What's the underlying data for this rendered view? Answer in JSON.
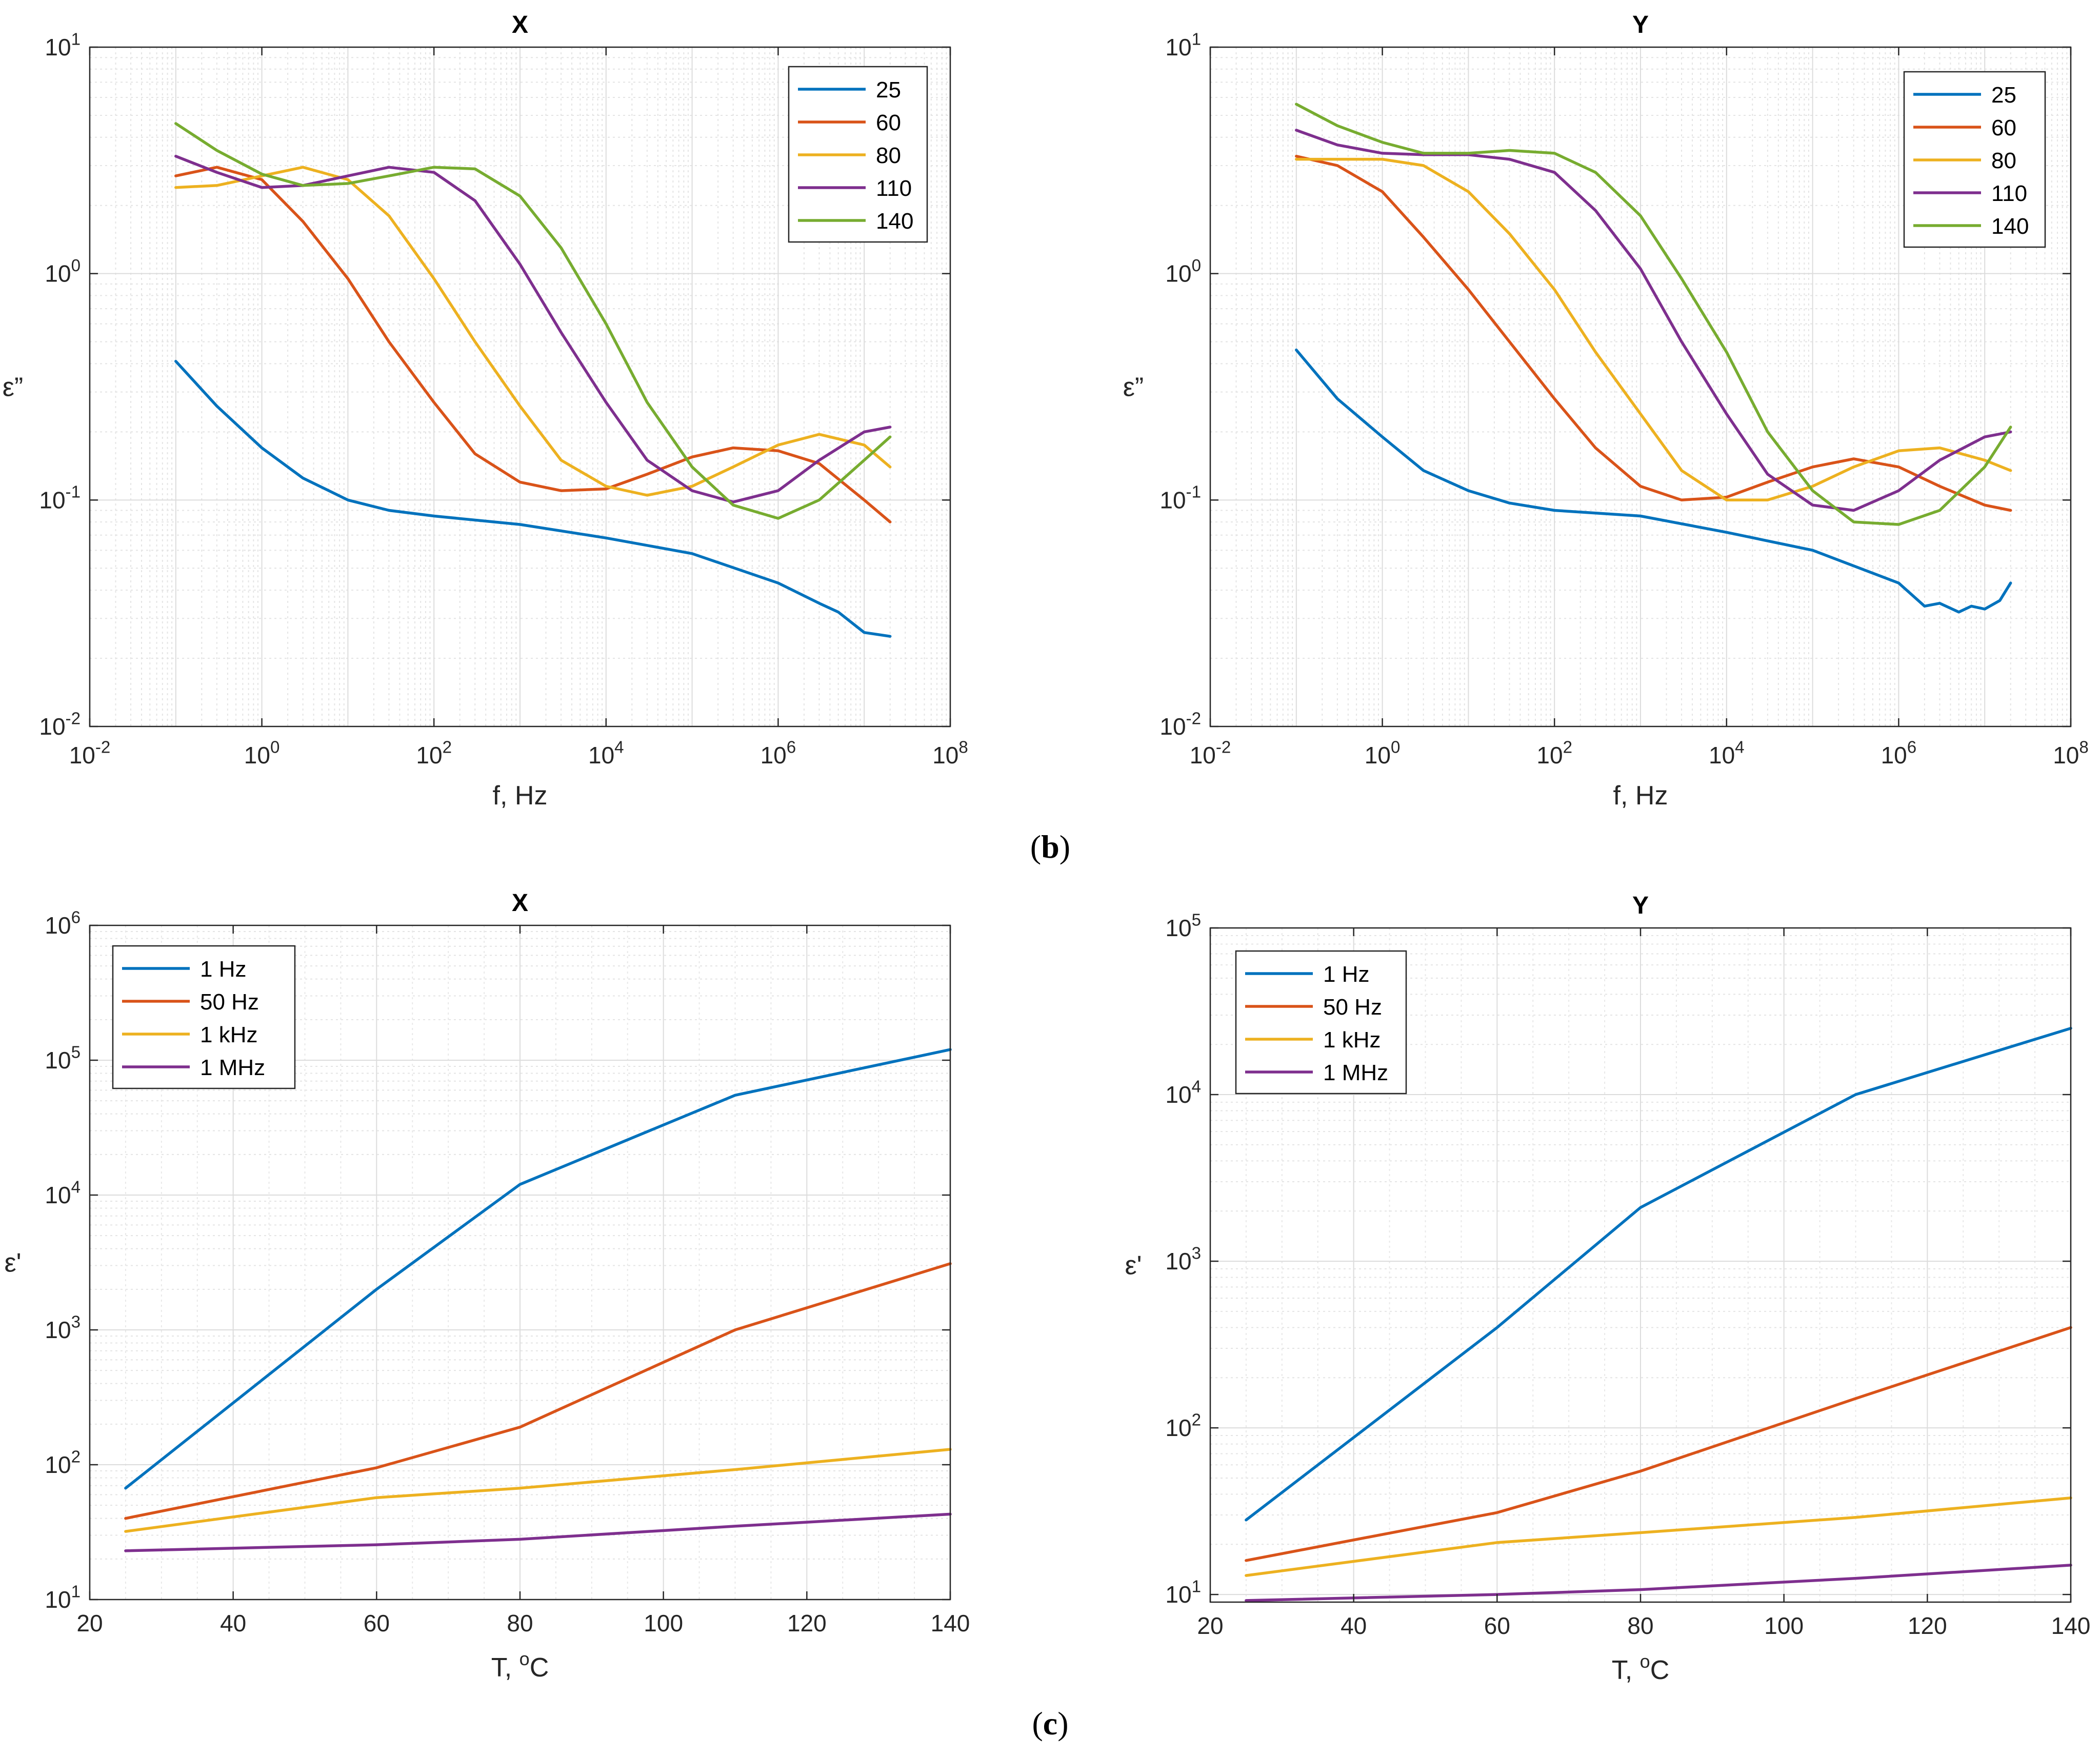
{
  "panel_labels": {
    "b": "b",
    "c": "c"
  },
  "chart_data": [
    {
      "id": "b-x",
      "type": "line",
      "title": "X",
      "xlabel": "f, Hz",
      "ylabel": "ε”",
      "xscale": "log",
      "yscale": "log",
      "xlim": [
        0.01,
        100000000
      ],
      "ylim": [
        0.01,
        10
      ],
      "xticks": [
        0.01,
        1,
        100,
        10000,
        1000000,
        100000000
      ],
      "xtick_labels": [
        {
          "base": "10",
          "exp": "-2"
        },
        {
          "base": "10",
          "exp": "0"
        },
        {
          "base": "10",
          "exp": "2"
        },
        {
          "base": "10",
          "exp": "4"
        },
        {
          "base": "10",
          "exp": "6"
        },
        {
          "base": "10",
          "exp": "8"
        }
      ],
      "yticks": [
        0.01,
        0.1,
        1,
        10
      ],
      "ytick_labels": [
        {
          "base": "10",
          "exp": "-2"
        },
        {
          "base": "10",
          "exp": "-1"
        },
        {
          "base": "10",
          "exp": "0"
        },
        {
          "base": "10",
          "exp": "1"
        }
      ],
      "grid": true,
      "legend_position": "top-right",
      "series": [
        {
          "name": "25",
          "color": "#0072BD",
          "x": [
            0.1,
            0.3,
            1,
            3,
            10,
            30,
            100,
            1000,
            10000,
            100000,
            1000000,
            3000000,
            5000000,
            10000000,
            20000000
          ],
          "y": [
            0.41,
            0.26,
            0.17,
            0.125,
            0.1,
            0.09,
            0.085,
            0.078,
            0.068,
            0.058,
            0.043,
            0.035,
            0.032,
            0.026,
            0.025
          ]
        },
        {
          "name": "60",
          "color": "#D95319",
          "x": [
            0.1,
            0.3,
            1,
            3,
            10,
            30,
            100,
            300,
            1000,
            3000,
            10000,
            30000,
            100000,
            300000,
            1000000,
            3000000,
            10000000,
            20000000
          ],
          "y": [
            2.7,
            2.95,
            2.6,
            1.7,
            0.95,
            0.5,
            0.27,
            0.16,
            0.12,
            0.11,
            0.112,
            0.13,
            0.155,
            0.17,
            0.165,
            0.145,
            0.1,
            0.08
          ]
        },
        {
          "name": "80",
          "color": "#EDB120",
          "x": [
            0.1,
            0.3,
            1,
            3,
            10,
            30,
            100,
            300,
            1000,
            3000,
            10000,
            30000,
            100000,
            300000,
            1000000,
            3000000,
            10000000,
            20000000
          ],
          "y": [
            2.4,
            2.45,
            2.7,
            2.95,
            2.6,
            1.8,
            0.95,
            0.5,
            0.26,
            0.15,
            0.115,
            0.105,
            0.115,
            0.14,
            0.175,
            0.195,
            0.175,
            0.14
          ]
        },
        {
          "name": "110",
          "color": "#7E2F8E",
          "x": [
            0.1,
            0.3,
            1,
            3,
            10,
            30,
            100,
            300,
            1000,
            3000,
            10000,
            30000,
            100000,
            300000,
            1000000,
            3000000,
            10000000,
            20000000
          ],
          "y": [
            3.3,
            2.8,
            2.4,
            2.45,
            2.7,
            2.95,
            2.8,
            2.1,
            1.1,
            0.55,
            0.27,
            0.15,
            0.11,
            0.098,
            0.11,
            0.15,
            0.2,
            0.21
          ]
        },
        {
          "name": "140",
          "color": "#77AC30",
          "x": [
            0.1,
            0.3,
            1,
            3,
            10,
            30,
            100,
            300,
            1000,
            3000,
            10000,
            30000,
            100000,
            300000,
            1000000,
            3000000,
            10000000,
            20000000
          ],
          "y": [
            4.6,
            3.5,
            2.75,
            2.45,
            2.5,
            2.7,
            2.95,
            2.9,
            2.2,
            1.3,
            0.6,
            0.27,
            0.14,
            0.095,
            0.083,
            0.1,
            0.15,
            0.19
          ]
        }
      ]
    },
    {
      "id": "b-y",
      "type": "line",
      "title": "Y",
      "xlabel": "f, Hz",
      "ylabel": "ε”",
      "xscale": "log",
      "yscale": "log",
      "xlim": [
        0.01,
        100000000
      ],
      "ylim": [
        0.01,
        10
      ],
      "xticks": [
        0.01,
        1,
        100,
        10000,
        1000000,
        100000000
      ],
      "xtick_labels": [
        {
          "base": "10",
          "exp": "-2"
        },
        {
          "base": "10",
          "exp": "0"
        },
        {
          "base": "10",
          "exp": "2"
        },
        {
          "base": "10",
          "exp": "4"
        },
        {
          "base": "10",
          "exp": "6"
        },
        {
          "base": "10",
          "exp": "8"
        }
      ],
      "yticks": [
        0.01,
        0.1,
        1,
        10
      ],
      "ytick_labels": [
        {
          "base": "10",
          "exp": "-2"
        },
        {
          "base": "10",
          "exp": "-1"
        },
        {
          "base": "10",
          "exp": "0"
        },
        {
          "base": "10",
          "exp": "1"
        }
      ],
      "grid": true,
      "legend_position": "top-right",
      "series": [
        {
          "name": "25",
          "color": "#0072BD",
          "x": [
            0.1,
            0.3,
            1,
            3,
            10,
            30,
            100,
            1000,
            10000,
            100000,
            1000000,
            2000000,
            3000000,
            5000000,
            7000000,
            10000000,
            15000000,
            20000000
          ],
          "y": [
            0.46,
            0.28,
            0.19,
            0.135,
            0.11,
            0.097,
            0.09,
            0.085,
            0.072,
            0.06,
            0.043,
            0.034,
            0.035,
            0.032,
            0.034,
            0.033,
            0.036,
            0.043
          ]
        },
        {
          "name": "60",
          "color": "#D95319",
          "x": [
            0.1,
            0.3,
            1,
            3,
            10,
            30,
            100,
            300,
            1000,
            3000,
            10000,
            30000,
            100000,
            300000,
            1000000,
            3000000,
            10000000,
            20000000
          ],
          "y": [
            3.3,
            3.0,
            2.3,
            1.45,
            0.85,
            0.5,
            0.28,
            0.17,
            0.115,
            0.1,
            0.103,
            0.12,
            0.14,
            0.152,
            0.14,
            0.115,
            0.095,
            0.09
          ]
        },
        {
          "name": "80",
          "color": "#EDB120",
          "x": [
            0.1,
            0.3,
            1,
            3,
            10,
            30,
            100,
            300,
            1000,
            3000,
            10000,
            30000,
            100000,
            300000,
            1000000,
            3000000,
            10000000,
            20000000
          ],
          "y": [
            3.2,
            3.2,
            3.2,
            3.0,
            2.3,
            1.5,
            0.85,
            0.45,
            0.24,
            0.135,
            0.1,
            0.1,
            0.115,
            0.14,
            0.165,
            0.17,
            0.15,
            0.135
          ]
        },
        {
          "name": "110",
          "color": "#7E2F8E",
          "x": [
            0.1,
            0.3,
            1,
            3,
            10,
            30,
            100,
            300,
            1000,
            3000,
            10000,
            30000,
            100000,
            300000,
            1000000,
            3000000,
            10000000,
            20000000
          ],
          "y": [
            4.3,
            3.7,
            3.4,
            3.35,
            3.35,
            3.2,
            2.8,
            1.9,
            1.05,
            0.5,
            0.24,
            0.13,
            0.095,
            0.09,
            0.11,
            0.15,
            0.19,
            0.2
          ]
        },
        {
          "name": "140",
          "color": "#77AC30",
          "x": [
            0.1,
            0.3,
            1,
            3,
            10,
            30,
            100,
            300,
            1000,
            3000,
            10000,
            30000,
            100000,
            300000,
            1000000,
            3000000,
            10000000,
            20000000
          ],
          "y": [
            5.6,
            4.5,
            3.8,
            3.4,
            3.4,
            3.5,
            3.4,
            2.8,
            1.8,
            0.95,
            0.45,
            0.2,
            0.11,
            0.08,
            0.078,
            0.09,
            0.14,
            0.21
          ]
        }
      ]
    },
    {
      "id": "c-x",
      "type": "line",
      "title": "X",
      "xlabel": "T, °C",
      "ylabel": "ε'",
      "xscale": "linear",
      "yscale": "log",
      "xlim": [
        20,
        140
      ],
      "ylim": [
        10,
        1000000
      ],
      "xticks": [
        20,
        40,
        60,
        80,
        100,
        120,
        140
      ],
      "xtick_labels": [
        "20",
        "40",
        "60",
        "80",
        "100",
        "120",
        "140"
      ],
      "yticks": [
        10,
        100,
        1000,
        10000,
        100000,
        1000000
      ],
      "ytick_labels": [
        {
          "base": "10",
          "exp": "1"
        },
        {
          "base": "10",
          "exp": "2"
        },
        {
          "base": "10",
          "exp": "3"
        },
        {
          "base": "10",
          "exp": "4"
        },
        {
          "base": "10",
          "exp": "5"
        },
        {
          "base": "10",
          "exp": "6"
        }
      ],
      "grid": true,
      "legend_position": "top-left",
      "series": [
        {
          "name": "1 Hz",
          "color": "#0072BD",
          "x": [
            25,
            60,
            80,
            110,
            140
          ],
          "y": [
            67,
            2000,
            12000,
            55000,
            120000
          ]
        },
        {
          "name": "50 Hz",
          "color": "#D95319",
          "x": [
            25,
            60,
            80,
            110,
            140
          ],
          "y": [
            40,
            95,
            190,
            1000,
            3100
          ]
        },
        {
          "name": "1 kHz",
          "color": "#EDB120",
          "x": [
            25,
            60,
            80,
            110,
            140
          ],
          "y": [
            32,
            57,
            67,
            92,
            130
          ]
        },
        {
          "name": "1 MHz",
          "color": "#7E2F8E",
          "x": [
            25,
            60,
            80,
            110,
            140
          ],
          "y": [
            23,
            25.5,
            28,
            35,
            43
          ]
        }
      ]
    },
    {
      "id": "c-y",
      "type": "line",
      "title": "Y",
      "xlabel": "T, °C",
      "ylabel": "ε'",
      "xscale": "linear",
      "yscale": "log",
      "xlim": [
        20,
        140
      ],
      "ylim": [
        9,
        100000
      ],
      "xticks": [
        20,
        40,
        60,
        80,
        100,
        120,
        140
      ],
      "xtick_labels": [
        "20",
        "40",
        "60",
        "80",
        "100",
        "120",
        "140"
      ],
      "yticks": [
        10,
        100,
        1000,
        10000,
        100000
      ],
      "ytick_labels": [
        {
          "base": "10",
          "exp": "1"
        },
        {
          "base": "10",
          "exp": "2"
        },
        {
          "base": "10",
          "exp": "3"
        },
        {
          "base": "10",
          "exp": "4"
        },
        {
          "base": "10",
          "exp": "5"
        }
      ],
      "grid": true,
      "legend_position": "top-left",
      "series": [
        {
          "name": "1 Hz",
          "color": "#0072BD",
          "x": [
            25,
            60,
            80,
            110,
            140
          ],
          "y": [
            28,
            400,
            2100,
            10000,
            25000
          ]
        },
        {
          "name": "50 Hz",
          "color": "#D95319",
          "x": [
            25,
            60,
            80,
            110,
            140
          ],
          "y": [
            16,
            31,
            55,
            150,
            400
          ]
        },
        {
          "name": "1 kHz",
          "color": "#EDB120",
          "x": [
            25,
            60,
            80,
            110,
            140
          ],
          "y": [
            13,
            20.5,
            23.5,
            29,
            38
          ]
        },
        {
          "name": "1 MHz",
          "color": "#7E2F8E",
          "x": [
            25,
            60,
            80,
            110,
            140
          ],
          "y": [
            9.2,
            10,
            10.7,
            12.5,
            15
          ]
        }
      ]
    }
  ]
}
